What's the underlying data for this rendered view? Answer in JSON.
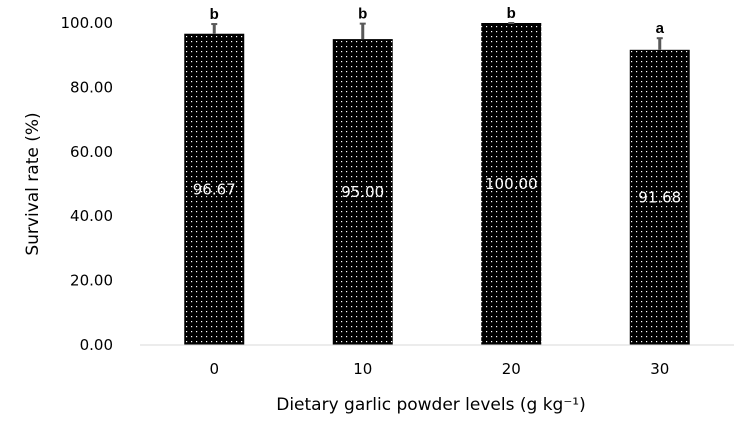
{
  "chart_data": {
    "type": "bar",
    "categories": [
      "0",
      "10",
      "20",
      "30"
    ],
    "values": [
      96.67,
      95.0,
      100.0,
      91.68
    ],
    "data_labels": [
      "96.67",
      "95.00",
      "100.00",
      "91.68"
    ],
    "error_bars": [
      3.0,
      4.8,
      0.0,
      3.6
    ],
    "significance_letters": [
      "b",
      "b",
      "b",
      "a"
    ],
    "xlabel": "Dietary garlic powder levels (g kg⁻¹)",
    "ylabel": "Survival rate (%)",
    "ylim": [
      0,
      100
    ],
    "yticks": [
      "0.00",
      "20.00",
      "40.00",
      "60.00",
      "80.00",
      "100.00"
    ],
    "bar_fill": "dotted-black",
    "colors": {
      "bar": "#000000",
      "dots": "#ffffff",
      "axis": "#d9d9d9",
      "error_bar": "#595959"
    },
    "grid": false,
    "legend": "none"
  }
}
